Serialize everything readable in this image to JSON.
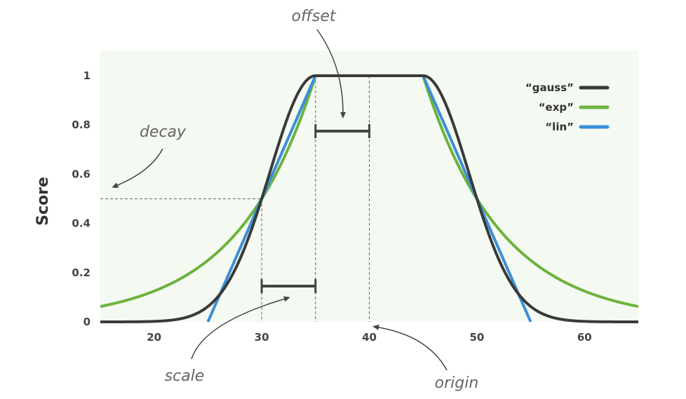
{
  "chart_data": {
    "type": "line",
    "xlabel": "",
    "ylabel": "Score",
    "xlim": [
      15,
      65
    ],
    "ylim": [
      0,
      1.05
    ],
    "xticks": [
      20,
      30,
      40,
      50,
      60
    ],
    "yticks": [
      0,
      0.2,
      0.4,
      0.6,
      0.8,
      1
    ],
    "ytick_labels": [
      "0",
      "0.2",
      "0.4",
      "0.6",
      "0.8",
      "1"
    ],
    "grid": false,
    "legend_position": "top-right",
    "params": {
      "origin": 40,
      "offset": 5,
      "scale": 5,
      "decay": 0.5
    },
    "series": [
      {
        "name": "“gauss”",
        "color": "#3a3a3a",
        "function": "gauss"
      },
      {
        "name": "“exp”",
        "color": "#6db33f",
        "function": "exp"
      },
      {
        "name": "“lin”",
        "color": "#3a8fd8",
        "function": "lin"
      }
    ],
    "annotations": {
      "offset": "offset",
      "decay": "decay",
      "scale": "scale",
      "origin": "origin"
    }
  },
  "colors": {
    "plot_bg": "#f4f9f1",
    "bracket": "#444444",
    "dashed": "#666666",
    "annotation": "#666666"
  }
}
